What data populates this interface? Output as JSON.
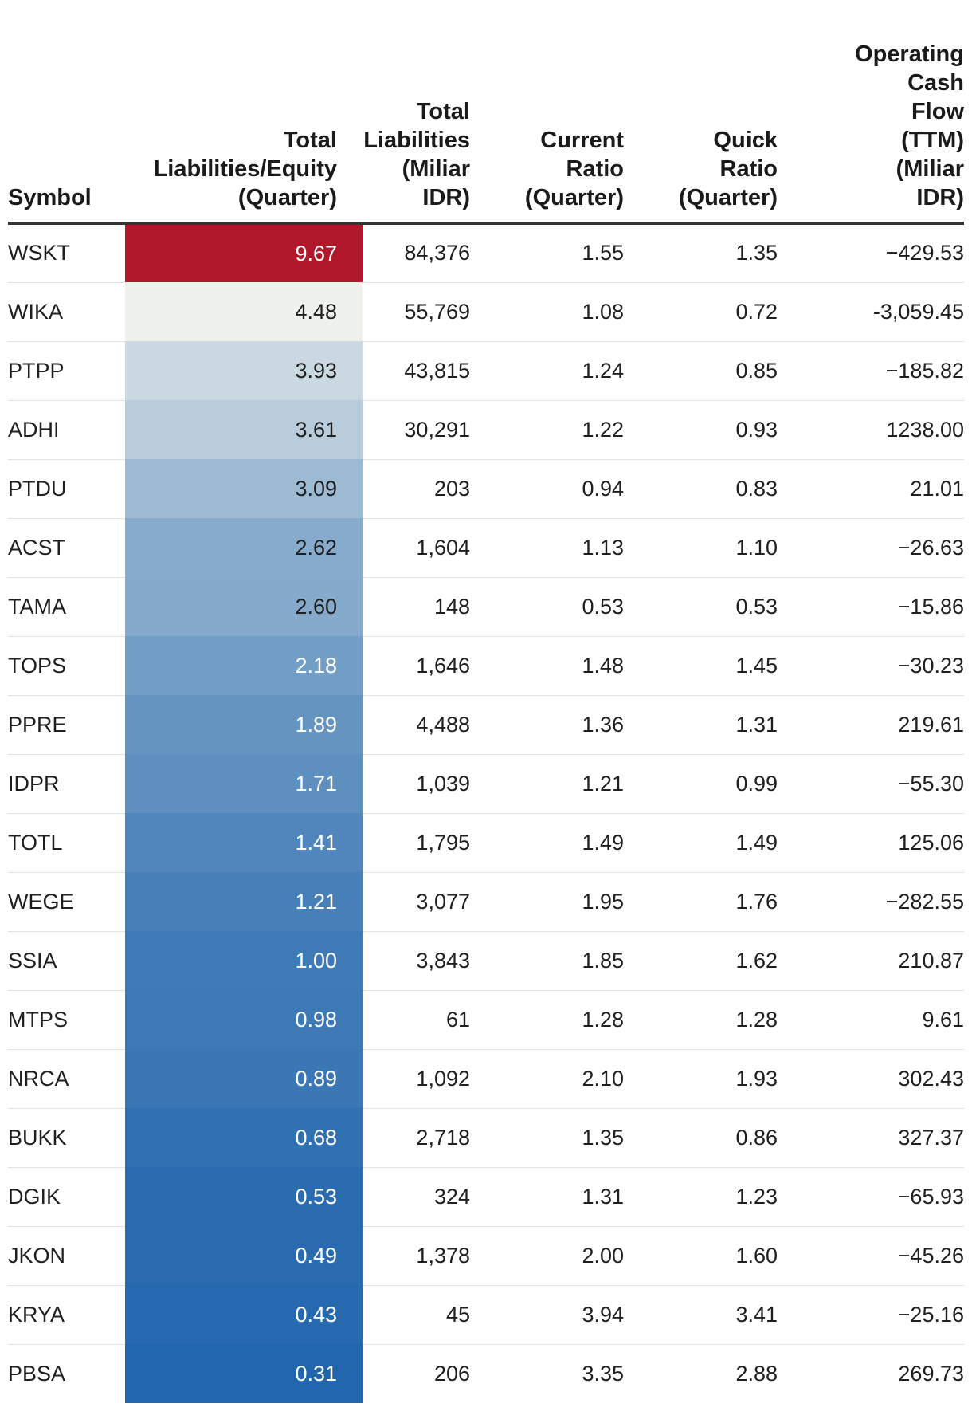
{
  "chart_data": {
    "type": "table",
    "columns": [
      "Symbol",
      "Total\nLiabilities/Equity\n(Quarter)",
      "Total\nLiabilities\n(Miliar\nIDR)",
      "Current\nRatio\n(Quarter)",
      "Quick\nRatio\n(Quarter)",
      "Operating\nCash\nFlow\n(TTM)\n(Miliar\nIDR)"
    ],
    "heat_column": 1,
    "heat_colors": {
      "high": "#b2182b",
      "mid": "#eef1ec",
      "low": "#2166ac",
      "text_light": "#ffffff",
      "text_dark": "#1f1f1f"
    },
    "rows": [
      {
        "symbol": "WSKT",
        "tle": "9.67",
        "tl": "84,376",
        "cr": "1.55",
        "qr": "1.35",
        "ocf": "−429.53",
        "v": 9.67
      },
      {
        "symbol": "WIKA",
        "tle": "4.48",
        "tl": "55,769",
        "cr": "1.08",
        "qr": "0.72",
        "ocf": "-3,059.45",
        "v": 4.48
      },
      {
        "symbol": "PTPP",
        "tle": "3.93",
        "tl": "43,815",
        "cr": "1.24",
        "qr": "0.85",
        "ocf": "−185.82",
        "v": 3.93
      },
      {
        "symbol": "ADHI",
        "tle": "3.61",
        "tl": "30,291",
        "cr": "1.22",
        "qr": "0.93",
        "ocf": "1238.00",
        "v": 3.61
      },
      {
        "symbol": "PTDU",
        "tle": "3.09",
        "tl": "203",
        "cr": "0.94",
        "qr": "0.83",
        "ocf": "21.01",
        "v": 3.09
      },
      {
        "symbol": "ACST",
        "tle": "2.62",
        "tl": "1,604",
        "cr": "1.13",
        "qr": "1.10",
        "ocf": "−26.63",
        "v": 2.62
      },
      {
        "symbol": "TAMA",
        "tle": "2.60",
        "tl": "148",
        "cr": "0.53",
        "qr": "0.53",
        "ocf": "−15.86",
        "v": 2.6
      },
      {
        "symbol": "TOPS",
        "tle": "2.18",
        "tl": "1,646",
        "cr": "1.48",
        "qr": "1.45",
        "ocf": "−30.23",
        "v": 2.18
      },
      {
        "symbol": "PPRE",
        "tle": "1.89",
        "tl": "4,488",
        "cr": "1.36",
        "qr": "1.31",
        "ocf": "219.61",
        "v": 1.89
      },
      {
        "symbol": "IDPR",
        "tle": "1.71",
        "tl": "1,039",
        "cr": "1.21",
        "qr": "0.99",
        "ocf": "−55.30",
        "v": 1.71
      },
      {
        "symbol": "TOTL",
        "tle": "1.41",
        "tl": "1,795",
        "cr": "1.49",
        "qr": "1.49",
        "ocf": "125.06",
        "v": 1.41
      },
      {
        "symbol": "WEGE",
        "tle": "1.21",
        "tl": "3,077",
        "cr": "1.95",
        "qr": "1.76",
        "ocf": "−282.55",
        "v": 1.21
      },
      {
        "symbol": "SSIA",
        "tle": "1.00",
        "tl": "3,843",
        "cr": "1.85",
        "qr": "1.62",
        "ocf": "210.87",
        "v": 1.0
      },
      {
        "symbol": "MTPS",
        "tle": "0.98",
        "tl": "61",
        "cr": "1.28",
        "qr": "1.28",
        "ocf": "9.61",
        "v": 0.98
      },
      {
        "symbol": "NRCA",
        "tle": "0.89",
        "tl": "1,092",
        "cr": "2.10",
        "qr": "1.93",
        "ocf": "302.43",
        "v": 0.89
      },
      {
        "symbol": "BUKK",
        "tle": "0.68",
        "tl": "2,718",
        "cr": "1.35",
        "qr": "0.86",
        "ocf": "327.37",
        "v": 0.68
      },
      {
        "symbol": "DGIK",
        "tle": "0.53",
        "tl": "324",
        "cr": "1.31",
        "qr": "1.23",
        "ocf": "−65.93",
        "v": 0.53
      },
      {
        "symbol": "JKON",
        "tle": "0.49",
        "tl": "1,378",
        "cr": "2.00",
        "qr": "1.60",
        "ocf": "−45.26",
        "v": 0.49
      },
      {
        "symbol": "KRYA",
        "tle": "0.43",
        "tl": "45",
        "cr": "3.94",
        "qr": "3.41",
        "ocf": "−25.16",
        "v": 0.43
      },
      {
        "symbol": "PBSA",
        "tle": "0.31",
        "tl": "206",
        "cr": "3.35",
        "qr": "2.88",
        "ocf": "269.73",
        "v": 0.31
      }
    ]
  }
}
